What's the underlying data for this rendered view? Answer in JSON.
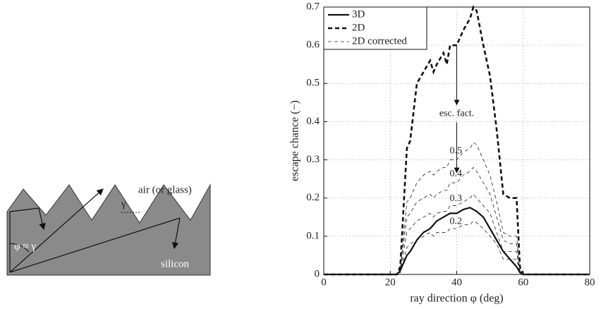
{
  "diagram": {
    "medium_top": "air (or glass)",
    "medium_bottom": "silicon",
    "angle_relation": "φ ≈ γ",
    "facet_angle": "γ"
  },
  "chart_data": {
    "type": "line",
    "xlabel": "ray direction φ (deg)",
    "ylabel": "escape chance (−)",
    "xlim": [
      0,
      80
    ],
    "ylim": [
      0,
      0.7
    ],
    "xticks": [
      0,
      20,
      40,
      60,
      80
    ],
    "yticks": [
      0,
      0.1,
      0.2,
      0.3,
      0.4,
      0.5,
      0.6,
      0.7
    ],
    "grid": true,
    "legend": "upper left",
    "annotation": "esc. fact.",
    "x": [
      0,
      22,
      23,
      25,
      26,
      28,
      30,
      32,
      33,
      34,
      36,
      37,
      38,
      40,
      41,
      42,
      44,
      45,
      46,
      48,
      50,
      52,
      54,
      56,
      58,
      59,
      60,
      80
    ],
    "series": [
      {
        "name": "3D",
        "color": "#111111",
        "line_style": "solid",
        "values": [
          0,
          0,
          0.01,
          0.05,
          0.06,
          0.09,
          0.11,
          0.12,
          0.13,
          0.14,
          0.15,
          0.155,
          0.16,
          0.16,
          0.165,
          0.17,
          0.175,
          0.17,
          0.165,
          0.15,
          0.12,
          0.09,
          0.06,
          0.04,
          0.02,
          0.005,
          0,
          0
        ]
      },
      {
        "name": "2D",
        "color": "#111111",
        "line_style": "dashed",
        "values": [
          0,
          0,
          0.02,
          0.33,
          0.35,
          0.5,
          0.53,
          0.56,
          0.53,
          0.55,
          0.58,
          0.55,
          0.6,
          0.6,
          0.62,
          0.64,
          0.67,
          0.7,
          0.69,
          0.6,
          0.52,
          0.38,
          0.21,
          0.2,
          0.2,
          0.02,
          0,
          0
        ]
      },
      {
        "name": "2D corrected",
        "color": "#222222",
        "line_style": "thin-dashed",
        "curves": [
          {
            "label": 0.5,
            "values": [
              0,
              0,
              0.01,
              0.19,
              0.2,
              0.24,
              0.26,
              0.27,
              0.26,
              0.27,
              0.28,
              0.28,
              0.3,
              0.3,
              0.31,
              0.32,
              0.33,
              0.345,
              0.34,
              0.3,
              0.26,
              0.19,
              0.11,
              0.1,
              0.1,
              0.01,
              0,
              0
            ]
          },
          {
            "label": 0.4,
            "values": [
              0,
              0,
              0.01,
              0.15,
              0.16,
              0.19,
              0.2,
              0.21,
              0.2,
              0.21,
              0.22,
              0.22,
              0.24,
              0.24,
              0.25,
              0.26,
              0.27,
              0.28,
              0.27,
              0.24,
              0.21,
              0.15,
              0.09,
              0.08,
              0.08,
              0.01,
              0,
              0
            ]
          },
          {
            "label": 0.3,
            "values": [
              0,
              0,
              0.005,
              0.11,
              0.12,
              0.14,
              0.15,
              0.16,
              0.15,
              0.16,
              0.165,
              0.165,
              0.18,
              0.18,
              0.185,
              0.19,
              0.2,
              0.21,
              0.2,
              0.18,
              0.16,
              0.11,
              0.06,
              0.06,
              0.06,
              0.005,
              0,
              0
            ]
          },
          {
            "label": 0.2,
            "values": [
              0,
              0,
              0.005,
              0.07,
              0.08,
              0.09,
              0.1,
              0.11,
              0.1,
              0.11,
              0.11,
              0.11,
              0.12,
              0.12,
              0.125,
              0.13,
              0.13,
              0.14,
              0.135,
              0.12,
              0.1,
              0.08,
              0.04,
              0.04,
              0.04,
              0.005,
              0,
              0
            ]
          }
        ]
      }
    ]
  }
}
